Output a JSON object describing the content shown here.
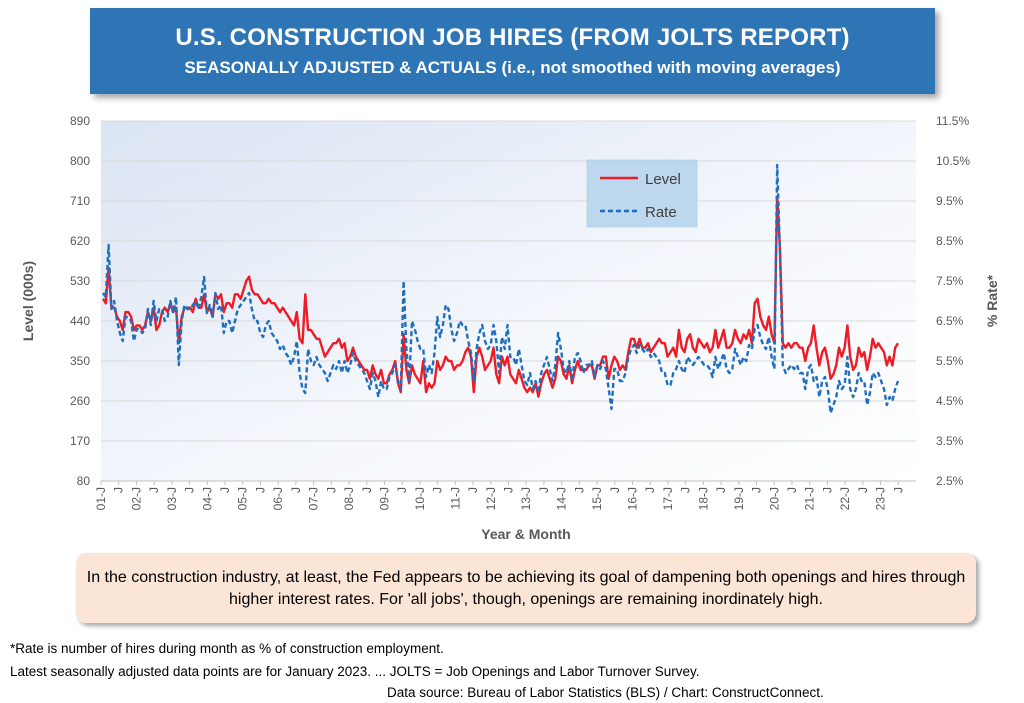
{
  "title": "U.S. CONSTRUCTION JOB HIRES (FROM JOLTS REPORT)",
  "subtitle": "SEASONALLY ADJUSTED & ACTUALS (i.e., not smoothed with moving averages)",
  "note": "In the construction industry, at least, the Fed appears to be achieving its goal of dampening both openings and hires through higher interest rates. For 'all jobs', though, openings are remaining inordinately high.",
  "footnote1": "*Rate is number of hires during month as % of construction employment.",
  "footnote2": "Latest seasonally adjusted data points are for January 2023. ... JOLTS = Job Openings and Labor Turnover Survey.",
  "source": "Data source: Bureau of Labor Statistics (BLS) / Chart: ConstructConnect.",
  "colors": {
    "level": "#ee1c25",
    "rate": "#1f6fc0",
    "banner": "#2e75b6"
  },
  "chart_data": {
    "type": "line",
    "xlabel": "Year & Month",
    "ylabel": "Level (000s)",
    "y2label": "% Rate*",
    "ylim": [
      80,
      890
    ],
    "y2lim": [
      2.5,
      11.5
    ],
    "yticks": [
      "890",
      "800",
      "710",
      "620",
      "530",
      "440",
      "350",
      "260",
      "170",
      "80"
    ],
    "y2ticks": [
      "11.5%",
      "10.5%",
      "9.5%",
      "8.5%",
      "7.5%",
      "6.5%",
      "5.5%",
      "4.5%",
      "3.5%",
      "2.5%"
    ],
    "xticks": [
      "01-J",
      "J",
      "02-J",
      "J",
      "03-J",
      "J",
      "04-J",
      "J",
      "05-J",
      "J",
      "06-J",
      "J",
      "07-J",
      "J",
      "08-J",
      "J",
      "09-J",
      "J",
      "10-J",
      "J",
      "11-J",
      "J",
      "12-J",
      "J",
      "13-J",
      "J",
      "14-J",
      "J",
      "15-J",
      "J",
      "16-J",
      "J",
      "17-J",
      "J",
      "18-J",
      "J",
      "19-J",
      "J",
      "20-J",
      "J",
      "21-J",
      "J",
      "22-J",
      "J",
      "23-J",
      "J"
    ],
    "grid": "horizontal",
    "legend_position": "top-center",
    "legend": [
      "Level",
      "Rate"
    ],
    "series": [
      {
        "name": "Level",
        "axis": "left",
        "style": "solid",
        "values": [
          490,
          480,
          560,
          470,
          470,
          450,
          440,
          420,
          460,
          460,
          450,
          420,
          430,
          430,
          420,
          430,
          460,
          440,
          470,
          420,
          430,
          460,
          470,
          460,
          480,
          460,
          470,
          390,
          450,
          470,
          470,
          470,
          460,
          490,
          470,
          470,
          500,
          460,
          470,
          450,
          500,
          490,
          500,
          460,
          480,
          480,
          470,
          500,
          500,
          490,
          510,
          530,
          540,
          510,
          500,
          500,
          490,
          480,
          480,
          490,
          480,
          480,
          470,
          460,
          470,
          460,
          450,
          440,
          430,
          460,
          400,
          390,
          500,
          420,
          420,
          410,
          400,
          400,
          380,
          360,
          370,
          380,
          390,
          390,
          400,
          380,
          390,
          350,
          360,
          380,
          360,
          350,
          340,
          330,
          330,
          310,
          340,
          320,
          310,
          330,
          300,
          300,
          320,
          330,
          350,
          300,
          280,
          410,
          330,
          300,
          340,
          320,
          310,
          300,
          350,
          280,
          300,
          290,
          300,
          350,
          330,
          340,
          360,
          350,
          350,
          330,
          340,
          340,
          350,
          370,
          380,
          360,
          280,
          360,
          380,
          360,
          330,
          340,
          350,
          380,
          320,
          300,
          360,
          340,
          360,
          320,
          310,
          300,
          330,
          310,
          290,
          280,
          290,
          280,
          300,
          270,
          300,
          320,
          330,
          310,
          290,
          310,
          360,
          350,
          320,
          310,
          340,
          300,
          330,
          350,
          330,
          330,
          330,
          340,
          340,
          310,
          340,
          340,
          360,
          360,
          310,
          340,
          360,
          350,
          330,
          340,
          330,
          370,
          400,
          400,
          380,
          400,
          380,
          380,
          390,
          370,
          380,
          390,
          400,
          390,
          390,
          360,
          370,
          380,
          360,
          420,
          380,
          370,
          400,
          410,
          380,
          370,
          400,
          390,
          380,
          390,
          370,
          380,
          420,
          380,
          400,
          420,
          380,
          380,
          390,
          420,
          400,
          390,
          410,
          400,
          420,
          390,
          480,
          490,
          450,
          430,
          420,
          450,
          410,
          390,
          720,
          600,
          390,
          380,
          390,
          380,
          390,
          390,
          380,
          380,
          350,
          380,
          390,
          430,
          380,
          340,
          370,
          380,
          350,
          310,
          320,
          340,
          380,
          360,
          380,
          430,
          360,
          330,
          340,
          380,
          360,
          370,
          330,
          360,
          400,
          380,
          390,
          380,
          370,
          340,
          360,
          340,
          380,
          390
        ]
      },
      {
        "name": "Rate",
        "axis": "right",
        "style": "dashed",
        "values": [
          7.2,
          7.1,
          8.4,
          6.8,
          7.0,
          6.5,
          6.2,
          6.0,
          6.6,
          6.6,
          6.5,
          6.0,
          6.3,
          6.3,
          6.2,
          6.3,
          6.8,
          6.4,
          7.0,
          6.5,
          6.8,
          6.8,
          6.5,
          6.6,
          7.0,
          6.7,
          7.1,
          5.4,
          6.5,
          6.9,
          6.8,
          6.8,
          6.9,
          7.0,
          6.8,
          7.1,
          7.6,
          6.7,
          6.9,
          6.6,
          7.2,
          6.8,
          6.9,
          6.2,
          6.5,
          6.5,
          6.2,
          6.5,
          6.8,
          6.9,
          7.0,
          7.1,
          7.2,
          6.8,
          6.5,
          6.5,
          6.2,
          6.1,
          6.4,
          6.5,
          6.2,
          6.1,
          6.0,
          5.8,
          5.9,
          5.7,
          5.6,
          5.4,
          5.6,
          6.0,
          5.2,
          4.8,
          4.7,
          5.8,
          5.5,
          5.4,
          5.6,
          5.4,
          5.3,
          5.2,
          5.0,
          5.2,
          5.4,
          5.3,
          5.5,
          5.2,
          5.5,
          5.2,
          5.4,
          5.7,
          5.5,
          5.4,
          5.3,
          5.2,
          5.0,
          4.8,
          5.2,
          5.0,
          4.6,
          5.0,
          4.8,
          4.8,
          5.1,
          5.2,
          5.4,
          5.0,
          4.8,
          7.5,
          5.8,
          5.0,
          6.5,
          6.3,
          6.0,
          5.8,
          5.8,
          5.1,
          5.4,
          5.2,
          5.7,
          6.6,
          6.1,
          6.4,
          6.9,
          6.8,
          6.3,
          6.0,
          6.2,
          6.5,
          6.4,
          6.4,
          6.0,
          5.7,
          5.0,
          5.8,
          6.2,
          6.4,
          6.0,
          5.8,
          5.9,
          6.4,
          6.0,
          5.2,
          6.1,
          5.8,
          6.4,
          5.6,
          5.6,
          5.4,
          5.8,
          5.4,
          5.0,
          4.9,
          5.2,
          4.8,
          5.0,
          4.7,
          5.2,
          5.4,
          5.6,
          5.3,
          5.0,
          5.4,
          6.2,
          5.8,
          5.3,
          5.2,
          5.5,
          5.0,
          5.6,
          5.7,
          5.5,
          5.2,
          5.4,
          5.4,
          5.5,
          5.1,
          5.4,
          5.3,
          5.5,
          5.3,
          4.8,
          4.3,
          5.3,
          5.3,
          5.0,
          5.0,
          5.2,
          5.6,
          5.8,
          5.9,
          5.7,
          5.9,
          5.8,
          5.7,
          5.8,
          5.6,
          5.7,
          5.6,
          5.5,
          5.2,
          5.2,
          4.9,
          4.9,
          5.2,
          5.3,
          5.5,
          5.3,
          5.2,
          5.6,
          5.5,
          5.4,
          5.5,
          5.6,
          5.5,
          5.4,
          5.4,
          5.3,
          5.1,
          5.6,
          5.3,
          5.5,
          5.7,
          5.3,
          5.2,
          5.3,
          5.8,
          5.6,
          5.4,
          5.6,
          5.5,
          5.9,
          5.8,
          6.3,
          6.4,
          6.1,
          5.9,
          5.8,
          6.1,
          5.6,
          5.3,
          10.4,
          8.2,
          5.4,
          5.2,
          5.3,
          5.4,
          5.3,
          5.4,
          5.2,
          5.2,
          4.8,
          5.3,
          5.4,
          5.0,
          5.1,
          4.6,
          5.0,
          5.1,
          4.8,
          4.2,
          4.4,
          4.6,
          5.0,
          4.8,
          4.9,
          5.6,
          4.8,
          4.6,
          4.8,
          5.2,
          5.0,
          5.0,
          4.4,
          4.7,
          5.2,
          5.1,
          5.2,
          5.0,
          4.8,
          4.4,
          4.6,
          4.5,
          4.8,
          5.0
        ]
      }
    ]
  }
}
